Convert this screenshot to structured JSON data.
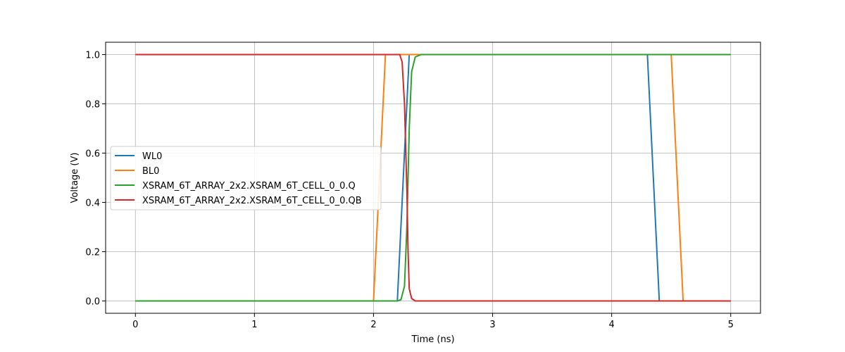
{
  "chart_data": {
    "type": "line",
    "title": "",
    "xlabel": "Time (ns)",
    "ylabel": "Voltage (V)",
    "xlim": [
      -0.25,
      5.25
    ],
    "ylim": [
      -0.05,
      1.05
    ],
    "xticks": [
      0,
      1,
      2,
      3,
      4,
      5
    ],
    "yticks": [
      0.0,
      0.2,
      0.4,
      0.6,
      0.8,
      1.0
    ],
    "xtick_labels": [
      "0",
      "1",
      "2",
      "3",
      "4",
      "5"
    ],
    "ytick_labels": [
      "0.0",
      "0.2",
      "0.4",
      "0.6",
      "0.8",
      "1.0"
    ],
    "grid": true,
    "legend_position": "center-left",
    "series": [
      {
        "name": "WL0",
        "color": "#1f77b4",
        "points": [
          [
            0,
            0
          ],
          [
            2.2,
            0
          ],
          [
            2.3,
            1
          ],
          [
            4.3,
            1
          ],
          [
            4.4,
            0
          ],
          [
            5,
            0
          ]
        ]
      },
      {
        "name": "BL0",
        "color": "#ff7f0e",
        "points": [
          [
            0,
            0
          ],
          [
            2.0,
            0
          ],
          [
            2.1,
            1
          ],
          [
            4.5,
            1
          ],
          [
            4.6,
            0
          ],
          [
            5,
            0
          ]
        ]
      },
      {
        "name": "XSRAM_6T_ARRAY_2x2.XSRAM_6T_CELL_0_0.Q",
        "color": "#2ca02c",
        "points": [
          [
            0,
            0
          ],
          [
            2.2,
            0
          ],
          [
            2.23,
            0.005
          ],
          [
            2.26,
            0.06
          ],
          [
            2.28,
            0.3
          ],
          [
            2.3,
            0.7
          ],
          [
            2.32,
            0.93
          ],
          [
            2.35,
            0.99
          ],
          [
            2.4,
            1
          ],
          [
            5,
            1
          ]
        ]
      },
      {
        "name": "XSRAM_6T_ARRAY_2x2.XSRAM_6T_CELL_0_0.QB",
        "color": "#d62728",
        "points": [
          [
            0,
            1
          ],
          [
            2.2,
            1
          ],
          [
            2.22,
            1.0
          ],
          [
            2.24,
            0.97
          ],
          [
            2.26,
            0.8
          ],
          [
            2.28,
            0.45
          ],
          [
            2.29,
            0.2
          ],
          [
            2.3,
            0.05
          ],
          [
            2.32,
            0.01
          ],
          [
            2.35,
            0.0
          ],
          [
            5,
            0
          ]
        ]
      }
    ]
  }
}
